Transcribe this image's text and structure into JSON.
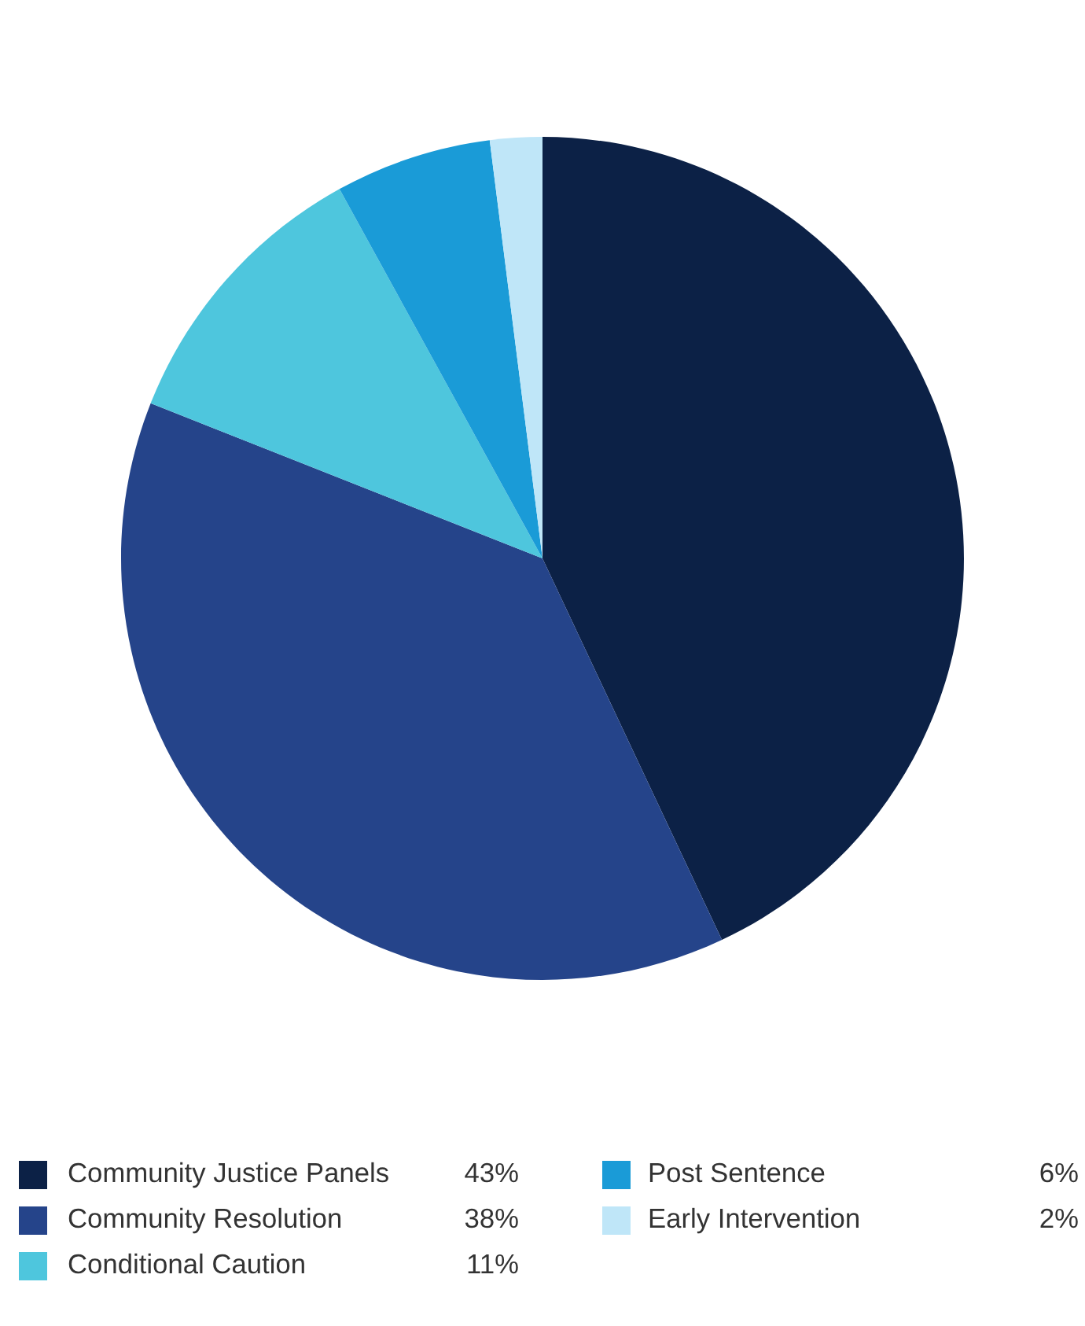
{
  "chart_data": {
    "type": "pie",
    "categories": [
      "Community Justice Panels",
      "Community Resolution",
      "Conditional Caution",
      "Post Sentence",
      "Early Intervention"
    ],
    "values": [
      43,
      38,
      11,
      6,
      2
    ],
    "colors": [
      "#0c2146",
      "#25448a",
      "#4ec6dd",
      "#1a9bd7",
      "#bfe6f8"
    ],
    "value_labels": [
      "43%",
      "38%",
      "11%",
      "6%",
      "2%"
    ],
    "legend": "bottom"
  }
}
